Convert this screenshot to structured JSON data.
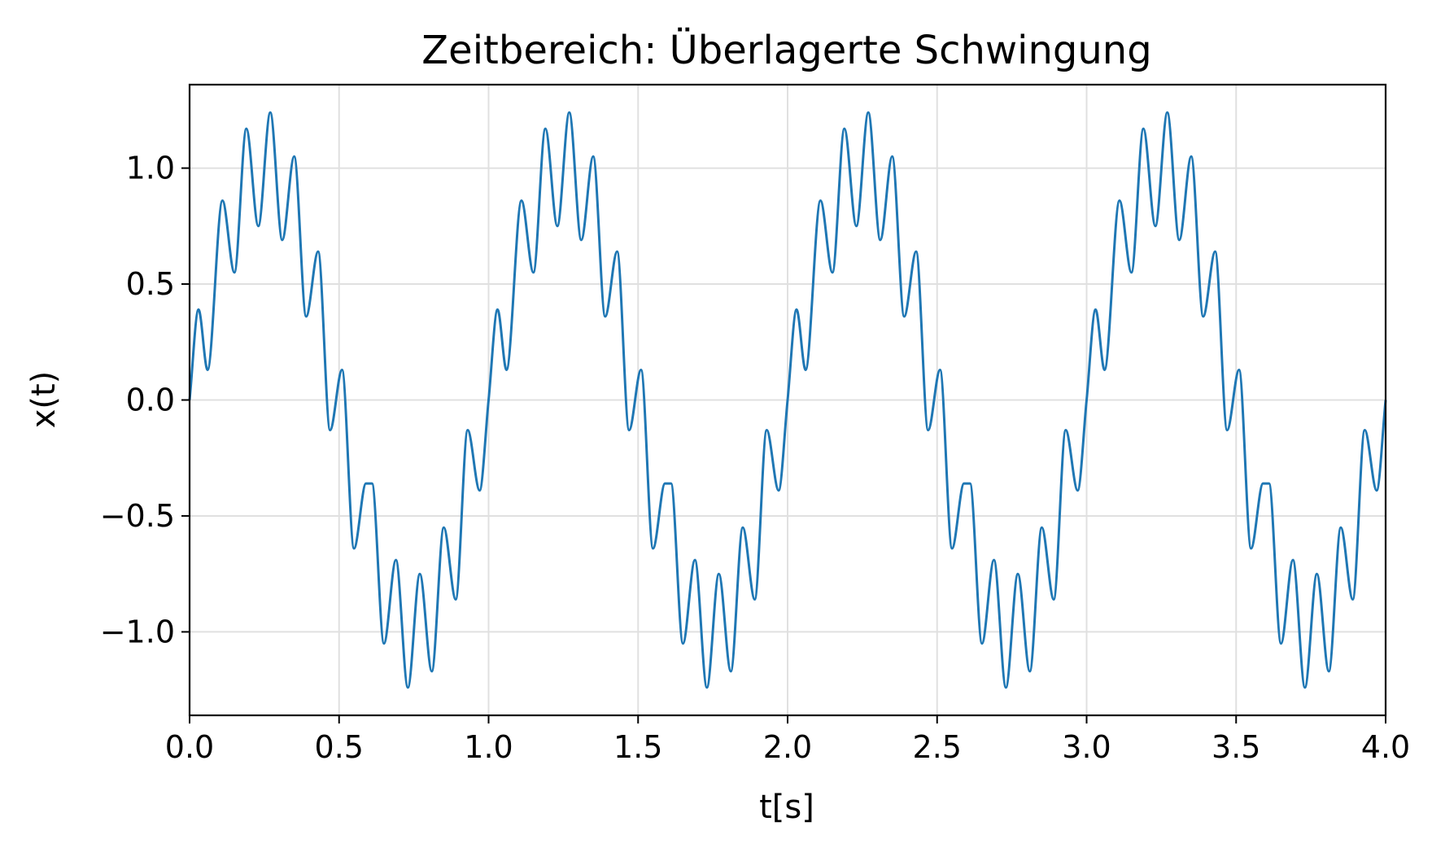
{
  "chart_data": {
    "type": "line",
    "title": "Zeitbereich: Überlagerte Schwingung",
    "xlabel": "t[s]",
    "ylabel": "x(t)",
    "xlim": [
      0,
      4
    ],
    "ylim": [
      -1.36,
      1.36
    ],
    "xticks": [
      0,
      0.5,
      1,
      1.5,
      2,
      2.5,
      3,
      3.5,
      4
    ],
    "xtick_labels": [
      "0.0",
      "0.5",
      "1.0",
      "1.5",
      "2.0",
      "2.5",
      "3.0",
      "3.5",
      "4.0"
    ],
    "yticks": [
      -1,
      -0.5,
      0,
      0.5,
      1
    ],
    "ytick_labels": [
      "−1.0",
      "−0.5",
      "0.0",
      "0.5",
      "1.0"
    ],
    "grid": true,
    "series": [
      {
        "color": "#1f77b4",
        "x": [
          0.0,
          0.03,
          0.06,
          0.11,
          0.15,
          0.19,
          0.23,
          0.27,
          0.31,
          0.35,
          0.39,
          0.43,
          0.47,
          0.51,
          0.55,
          0.59,
          0.61,
          0.65,
          0.69,
          0.73,
          0.77,
          0.81,
          0.85,
          0.89,
          0.93,
          0.97,
          1.0,
          1.03,
          1.06,
          1.11,
          1.15,
          1.19,
          1.23,
          1.27,
          1.31,
          1.35,
          1.39,
          1.43,
          1.47,
          1.51,
          1.55,
          1.59,
          1.61,
          1.65,
          1.69,
          1.73,
          1.77,
          1.81,
          1.85,
          1.89,
          1.93,
          1.97,
          2.0,
          2.03,
          2.06,
          2.11,
          2.15,
          2.19,
          2.23,
          2.27,
          2.31,
          2.35,
          2.39,
          2.43,
          2.47,
          2.51,
          2.55,
          2.59,
          2.61,
          2.65,
          2.69,
          2.73,
          2.77,
          2.81,
          2.85,
          2.89,
          2.93,
          2.97,
          3.0,
          3.03,
          3.06,
          3.11,
          3.15,
          3.19,
          3.23,
          3.27,
          3.31,
          3.35,
          3.39,
          3.43,
          3.47,
          3.51,
          3.55,
          3.59,
          3.61,
          3.65,
          3.69,
          3.73,
          3.77,
          3.81,
          3.85,
          3.89,
          3.93,
          3.97,
          4.0
        ],
        "y": [
          0.0,
          0.39,
          0.13,
          0.86,
          0.55,
          1.17,
          0.75,
          1.24,
          0.69,
          1.05,
          0.36,
          0.64,
          -0.13,
          0.13,
          -0.64,
          -0.36,
          -0.36,
          -1.05,
          -0.69,
          -1.24,
          -0.75,
          -1.17,
          -0.55,
          -0.86,
          -0.13,
          -0.39,
          0.0,
          0.39,
          0.13,
          0.86,
          0.55,
          1.17,
          0.75,
          1.24,
          0.69,
          1.05,
          0.36,
          0.64,
          -0.13,
          0.13,
          -0.64,
          -0.36,
          -0.36,
          -1.05,
          -0.69,
          -1.24,
          -0.75,
          -1.17,
          -0.55,
          -0.86,
          -0.13,
          -0.39,
          0.0,
          0.39,
          0.13,
          0.86,
          0.55,
          1.17,
          0.75,
          1.24,
          0.69,
          1.05,
          0.36,
          0.64,
          -0.13,
          0.13,
          -0.64,
          -0.36,
          -0.36,
          -1.05,
          -0.69,
          -1.24,
          -0.75,
          -1.17,
          -0.55,
          -0.86,
          -0.13,
          -0.39,
          0.0,
          0.39,
          0.13,
          0.86,
          0.55,
          1.17,
          0.75,
          1.24,
          0.69,
          1.05,
          0.36,
          0.64,
          -0.13,
          0.13,
          -0.64,
          -0.36,
          -0.36,
          -1.05,
          -0.69,
          -1.24,
          -0.75,
          -1.17,
          -0.55,
          -0.86,
          -0.13,
          -0.39,
          0.0
        ]
      }
    ]
  }
}
